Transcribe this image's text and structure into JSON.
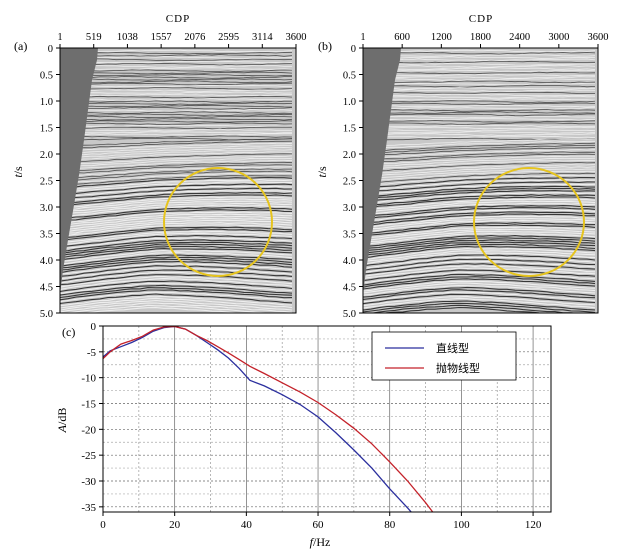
{
  "panels": [
    {
      "label": "(a)",
      "top_axis_title": "CDP",
      "x_ticks": [
        "1",
        "519",
        "1038",
        "1557",
        "2076",
        "2595",
        "3114",
        "3600"
      ],
      "y_title_main": "t",
      "y_title_unit": "/s",
      "y_ticks": [
        "0",
        "0.5",
        "1.0",
        "1.5",
        "2.0",
        "2.5",
        "3.0",
        "3.5",
        "4.0",
        "4.5",
        "5.0"
      ],
      "highlight_color": "#e6c41e"
    },
    {
      "label": "(b)",
      "top_axis_title": "CDP",
      "x_ticks": [
        "1",
        "600",
        "1200",
        "1800",
        "2400",
        "3000",
        "3600"
      ],
      "y_title_main": "t",
      "y_title_unit": "/s",
      "y_ticks": [
        "0",
        "0.5",
        "1.0",
        "1.5",
        "2.0",
        "2.5",
        "3.0",
        "3.5",
        "4.0",
        "4.5",
        "5.0"
      ],
      "highlight_color": "#e6c41e"
    }
  ],
  "chart_data": {
    "type": "line",
    "label": "(c)",
    "xlabel_main": "f",
    "xlabel_unit": "/Hz",
    "ylabel_main": "A",
    "ylabel_unit": "/dB",
    "xlim": [
      0,
      125
    ],
    "ylim": [
      -36,
      0
    ],
    "x_ticks": [
      "0",
      "20",
      "40",
      "60",
      "80",
      "100",
      "120"
    ],
    "y_ticks": [
      "0",
      "-5",
      "-10",
      "-15",
      "-20",
      "-25",
      "-30",
      "-35"
    ],
    "grid": true,
    "legend_position": "top-right",
    "series": [
      {
        "name": "直线型",
        "color": "#2b2f9e",
        "x": [
          0,
          2,
          5,
          8,
          11,
          14,
          17,
          20,
          23,
          26,
          29,
          32,
          35,
          38,
          41,
          45,
          50,
          55,
          60,
          65,
          70,
          75,
          80,
          85,
          86
        ],
        "y": [
          -6,
          -4.8,
          -4,
          -3.2,
          -2.2,
          -1,
          -0.3,
          -0.1,
          -0.6,
          -1.8,
          -3.2,
          -4.6,
          -6.2,
          -8.2,
          -10.5,
          -11.6,
          -13.3,
          -15.2,
          -17.6,
          -20.7,
          -24,
          -27.5,
          -31.5,
          -35.2,
          -36
        ]
      },
      {
        "name": "抛物线型",
        "color": "#c4222a",
        "x": [
          0,
          2,
          5,
          8,
          11,
          14,
          17,
          20,
          23,
          26,
          29,
          32,
          35,
          38,
          41,
          45,
          50,
          55,
          60,
          65,
          70,
          75,
          80,
          85,
          90,
          92
        ],
        "y": [
          -6.3,
          -5,
          -3.5,
          -2.8,
          -2,
          -0.8,
          -0.2,
          -0.1,
          -0.6,
          -1.8,
          -2.8,
          -4,
          -5.2,
          -6.5,
          -7.8,
          -9.2,
          -11,
          -12.8,
          -14.8,
          -17.2,
          -19.8,
          -22.8,
          -26.3,
          -30,
          -34.2,
          -36
        ]
      }
    ]
  }
}
